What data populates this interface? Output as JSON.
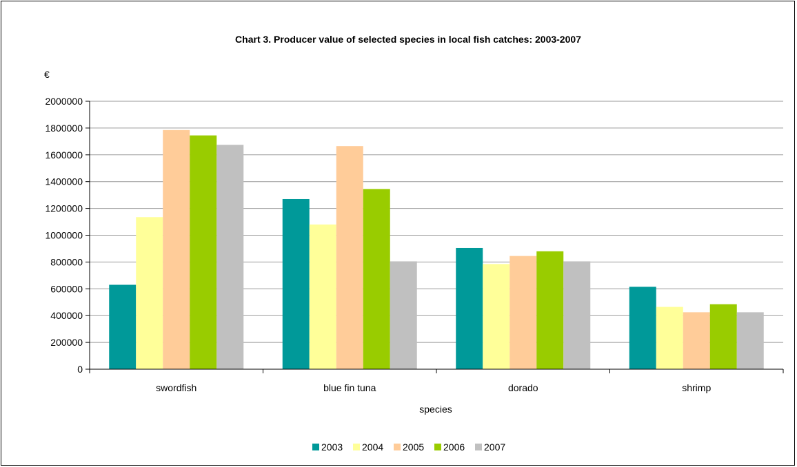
{
  "chart_data": {
    "type": "bar",
    "title": "Chart 3.  Producer value of selected species in local fish catches: 2003-2007",
    "ylabel": "€",
    "xlabel": "species",
    "categories": [
      "swordfish",
      "blue fin tuna",
      "dorado",
      "shrimp"
    ],
    "ylim": [
      0,
      2000000
    ],
    "yticks": [
      0,
      200000,
      400000,
      600000,
      800000,
      1000000,
      1200000,
      1400000,
      1600000,
      1800000,
      2000000
    ],
    "ytick_labels": [
      "0",
      "200000",
      "400000",
      "600000",
      "800000",
      "1000000",
      "1200000",
      "1400000",
      "1600000",
      "1800000",
      "2000000"
    ],
    "grid": true,
    "legend_position": "bottom",
    "series": [
      {
        "name": "2003",
        "color": "#009999",
        "values": [
          630000,
          1270000,
          905000,
          615000
        ]
      },
      {
        "name": "2004",
        "color": "#FFFF99",
        "values": [
          1135000,
          1080000,
          785000,
          465000
        ]
      },
      {
        "name": "2005",
        "color": "#FFCC99",
        "values": [
          1785000,
          1665000,
          845000,
          425000
        ]
      },
      {
        "name": "2006",
        "color": "#99CC00",
        "values": [
          1745000,
          1345000,
          880000,
          485000
        ]
      },
      {
        "name": "2007",
        "color": "#C0C0C0",
        "values": [
          1675000,
          805000,
          805000,
          425000
        ]
      }
    ]
  }
}
